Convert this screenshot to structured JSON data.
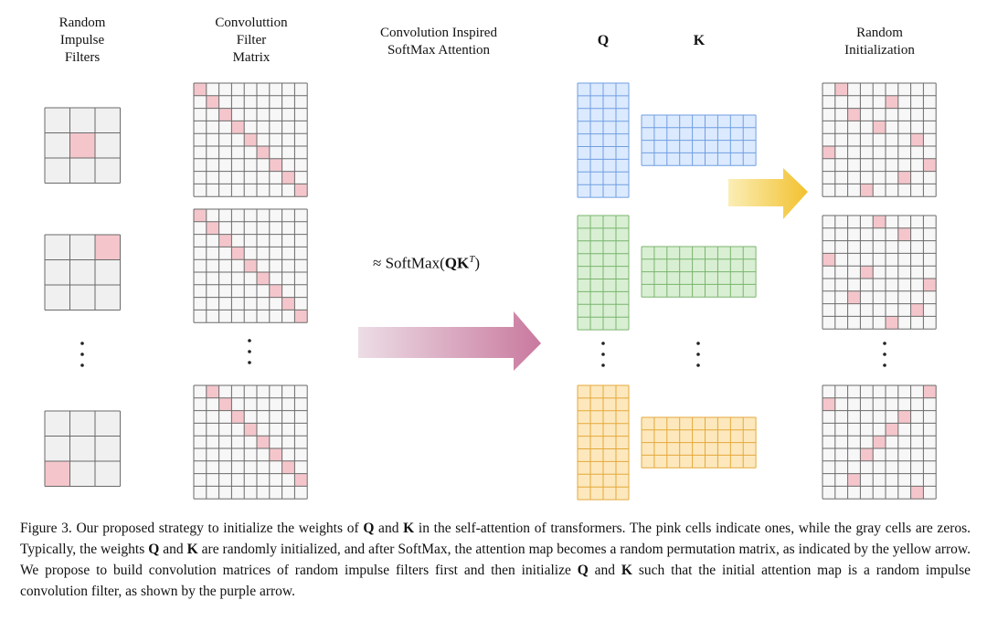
{
  "labels": {
    "random_impulse_filters": [
      "Random",
      "Impulse",
      "Filters"
    ],
    "conv_filter_matrix": [
      "Convoluttion",
      "Filter",
      "Matrix"
    ],
    "conv_inspired_attention": [
      "Convolution Inspired",
      "SoftMax Attention"
    ],
    "q": "Q",
    "k": "K",
    "random_initialization": [
      "Random",
      "Initialization"
    ],
    "softmax_prefix": "≈ SoftMax(",
    "softmax_qk": "QK",
    "softmax_sup": "T",
    "softmax_suffix": ")"
  },
  "impulse_filters": [
    {
      "pink_row": 1,
      "pink_col": 1
    },
    {
      "pink_row": 0,
      "pink_col": 2
    },
    {
      "pink_row": 2,
      "pink_col": 0
    }
  ],
  "conv_matrices": [
    {
      "diagonal_offset": 0
    },
    {
      "diagonal_offset": 0
    },
    {
      "diagonal_offset": 1
    }
  ],
  "qk_groups": [
    {
      "color": "#a9c8f2",
      "stroke": "#6f9ee0",
      "fill": "#dceaff"
    },
    {
      "color": "#a8d8a0",
      "stroke": "#79b46e",
      "fill": "#d9efd3"
    },
    {
      "color": "#f5cf7e",
      "stroke": "#e3a93a",
      "fill": "#fde8bd"
    }
  ],
  "random_perms": [
    [
      1,
      5,
      2,
      4,
      7,
      0,
      8,
      6,
      3,
      9
    ],
    [
      4,
      6,
      9,
      0,
      3,
      8,
      2,
      7,
      5,
      1
    ],
    [
      8,
      0,
      6,
      5,
      4,
      3,
      9,
      2,
      7,
      1
    ]
  ],
  "colors": {
    "pink": "#f4c6cb",
    "gray": "#f0f0f0",
    "grid": "#6a6a6a",
    "purple_arrow": "#c9799e",
    "yellow_arrow": "#f2c12e"
  },
  "caption": {
    "p1": "Figure 3.  Our proposed strategy to initialize the weights of ",
    "q1": "Q",
    "p2": " and ",
    "k1": "K",
    "p3": " in the self-attention of transformers.  The pink cells indicate ones, while the gray cells are zeros. Typically, the weights ",
    "q2": "Q",
    "p4": " and ",
    "k2": "K",
    "p5": " are randomly initialized, and after SoftMax, the attention map becomes a random permutation matrix, as indicated by the yellow arrow. We propose to build convolution matrices of random impulse filters first and then initialize ",
    "q3": "Q",
    "p6": " and ",
    "k3": "K",
    "p7": " such that the initial attention map is a random impulse convolution filter, as shown by the purple arrow."
  }
}
